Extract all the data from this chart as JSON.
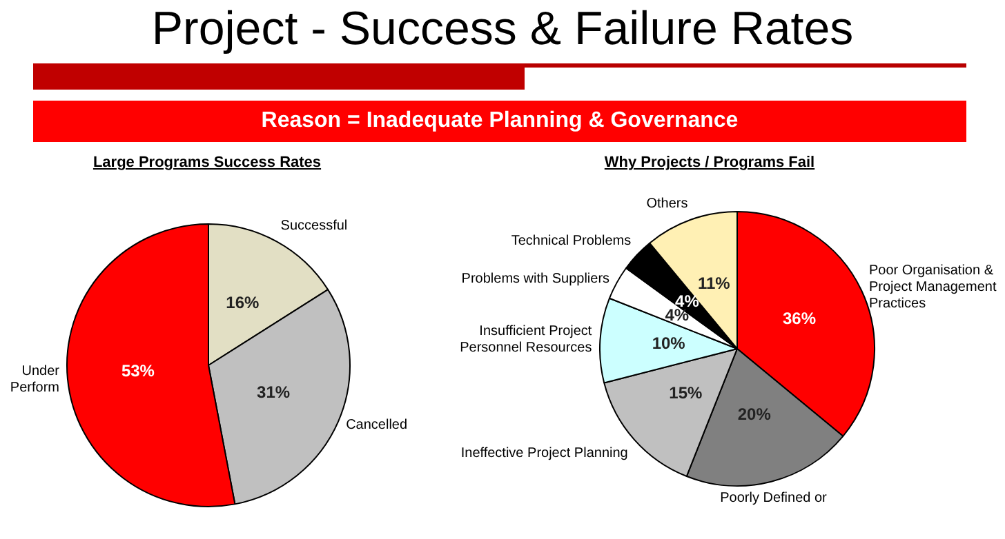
{
  "chart_data": [
    {
      "type": "other",
      "title": "Project - Success & Failure Rates",
      "subtitle": "Reason = Inadequate Planning & Governance"
    },
    {
      "type": "pie",
      "title": "Large Programs Success Rates",
      "categories": [
        "Successful",
        "Cancelled",
        "Under Perform"
      ],
      "values": [
        16,
        31,
        53
      ],
      "colors": [
        "#e2dfc4",
        "#c0c0c0",
        "#ff0000"
      ],
      "value_labels": [
        "16%",
        "31%",
        "53%"
      ]
    },
    {
      "type": "pie",
      "title": "Why Projects / Programs Fail",
      "categories": [
        "Poor Organisation & Project Management Practices",
        "Poorly Defined or",
        "Ineffective Project Planning",
        "Insufficient Project Personnel Resources",
        "Problems with Suppliers",
        "Technical Problems",
        "Others"
      ],
      "values": [
        36,
        20,
        15,
        10,
        4,
        4,
        11
      ],
      "colors": [
        "#ff0000",
        "#808080",
        "#c0c0c0",
        "#ccffff",
        "#ffffff",
        "#000000",
        "#fff0b4"
      ],
      "value_labels": [
        "36%",
        "20%",
        "15%",
        "10%",
        "4%",
        "4%",
        "11%"
      ]
    }
  ]
}
